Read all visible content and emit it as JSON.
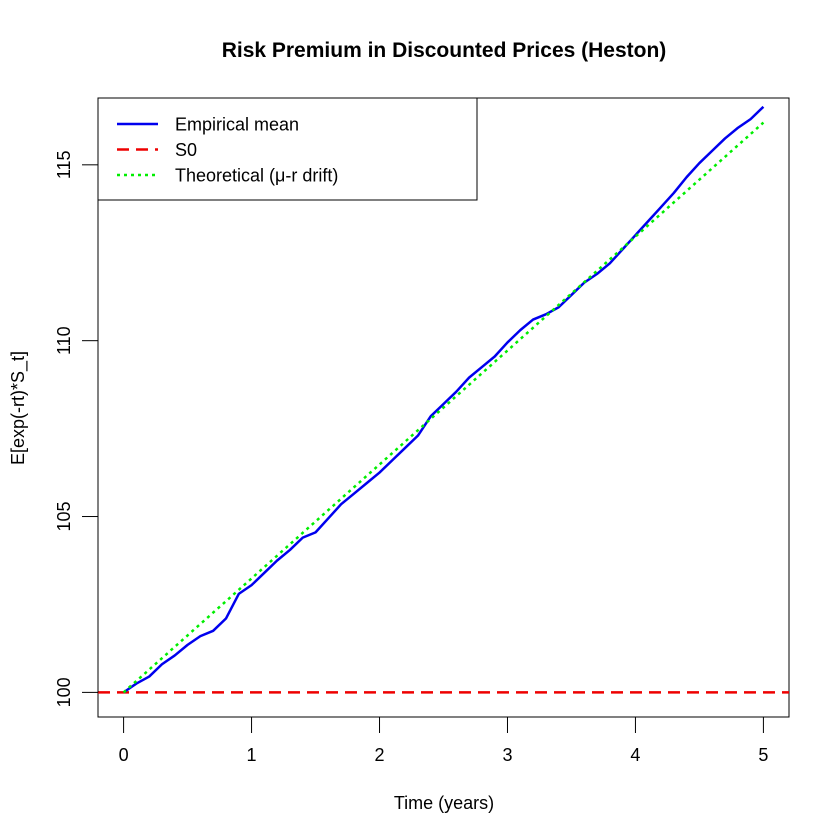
{
  "chart_data": {
    "type": "line",
    "title": "Risk Premium in Discounted Prices (Heston)",
    "xlabel": "Time (years)",
    "ylabel": "E[exp(-rt)*S_t]",
    "xlim": [
      -0.2,
      5.2
    ],
    "ylim": [
      99.3,
      116.9
    ],
    "x_ticks": [
      0,
      1,
      2,
      3,
      4,
      5
    ],
    "y_ticks": [
      100,
      105,
      110,
      115
    ],
    "legend_position": "top-left",
    "series": [
      {
        "name": "Empirical mean",
        "color": "#0000ee",
        "style": "solid",
        "points": [
          [
            0.0,
            100.0
          ],
          [
            0.1,
            100.25
          ],
          [
            0.2,
            100.45
          ],
          [
            0.3,
            100.8
          ],
          [
            0.4,
            101.05
          ],
          [
            0.5,
            101.35
          ],
          [
            0.6,
            101.6
          ],
          [
            0.7,
            101.75
          ],
          [
            0.8,
            102.1
          ],
          [
            0.9,
            102.8
          ],
          [
            1.0,
            103.05
          ],
          [
            1.1,
            103.4
          ],
          [
            1.2,
            103.75
          ],
          [
            1.3,
            104.05
          ],
          [
            1.4,
            104.4
          ],
          [
            1.5,
            104.55
          ],
          [
            1.6,
            104.95
          ],
          [
            1.7,
            105.35
          ],
          [
            1.8,
            105.65
          ],
          [
            1.9,
            105.95
          ],
          [
            2.0,
            106.25
          ],
          [
            2.1,
            106.6
          ],
          [
            2.2,
            106.95
          ],
          [
            2.3,
            107.3
          ],
          [
            2.4,
            107.85
          ],
          [
            2.5,
            108.2
          ],
          [
            2.6,
            108.55
          ],
          [
            2.7,
            108.95
          ],
          [
            2.8,
            109.25
          ],
          [
            2.9,
            109.55
          ],
          [
            3.0,
            109.95
          ],
          [
            3.1,
            110.3
          ],
          [
            3.2,
            110.6
          ],
          [
            3.3,
            110.75
          ],
          [
            3.4,
            110.95
          ],
          [
            3.5,
            111.3
          ],
          [
            3.6,
            111.65
          ],
          [
            3.7,
            111.9
          ],
          [
            3.8,
            112.2
          ],
          [
            3.9,
            112.6
          ],
          [
            4.0,
            113.0
          ],
          [
            4.1,
            113.4
          ],
          [
            4.2,
            113.8
          ],
          [
            4.3,
            114.2
          ],
          [
            4.4,
            114.65
          ],
          [
            4.5,
            115.05
          ],
          [
            4.6,
            115.4
          ],
          [
            4.7,
            115.75
          ],
          [
            4.8,
            116.05
          ],
          [
            4.9,
            116.3
          ],
          [
            5.0,
            116.65
          ]
        ]
      },
      {
        "name": "S0",
        "color": "#ee0000",
        "style": "dashed",
        "points": [
          [
            -0.2,
            100.0
          ],
          [
            5.2,
            100.0
          ]
        ]
      },
      {
        "name": "Theoretical (μ-r drift)",
        "color": "#00ee00",
        "style": "dotted",
        "points": [
          [
            0.0,
            100.0
          ],
          [
            5.0,
            116.2
          ]
        ]
      }
    ]
  }
}
